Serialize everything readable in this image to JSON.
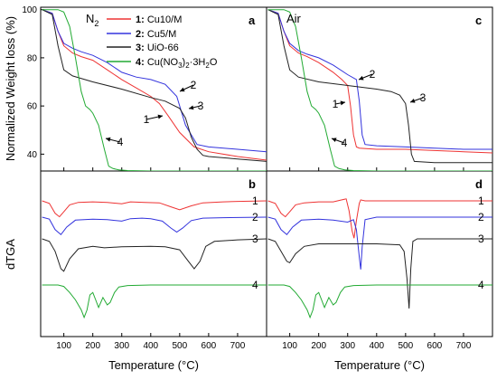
{
  "figure": {
    "ylabel_top": "Normalized Weight loss (%)",
    "ylabel_bottom": "dTGA",
    "xlabel": "Temperature (°C)"
  },
  "colors": {
    "s1": "#ee3333",
    "s2": "#3333dd",
    "s3": "#222222",
    "s4": "#22aa33"
  },
  "legend": {
    "environment_left": "N",
    "environment_left_sub": "2",
    "entries": [
      {
        "num": "1:",
        "label": "Cu10/M"
      },
      {
        "num": "2:",
        "label": "Cu5/M"
      },
      {
        "num": "3:",
        "label": "UiO-66"
      },
      {
        "num": "4:",
        "label": "Cu(NO",
        "sub1": "3",
        "mid": ")",
        "sub2": "2",
        "tail": "·3H",
        "sub3": "2",
        "end": "O"
      }
    ]
  },
  "chart_data": [
    {
      "type": "line",
      "panel": "a",
      "environment": "N2",
      "xlim": [
        20,
        800
      ],
      "ylim": [
        33,
        101
      ],
      "xticks": [
        100,
        200,
        300,
        400,
        500,
        600,
        700
      ],
      "yticks": [
        40,
        60,
        80,
        100
      ],
      "annotations": [
        "1",
        "2",
        "3",
        "4"
      ],
      "series": [
        {
          "name": "Cu10/M",
          "x": [
            25,
            60,
            80,
            100,
            130,
            160,
            200,
            250,
            300,
            350,
            400,
            430,
            460,
            500,
            550,
            600,
            700,
            800
          ],
          "y": [
            100,
            98.5,
            91,
            85,
            82,
            80.5,
            79,
            75,
            71,
            67.5,
            64,
            61,
            56,
            49,
            43,
            41,
            39,
            37.5
          ]
        },
        {
          "name": "Cu5/M",
          "x": [
            25,
            60,
            80,
            100,
            130,
            160,
            200,
            250,
            300,
            350,
            400,
            450,
            490,
            520,
            560,
            600,
            700,
            800
          ],
          "y": [
            100,
            98.5,
            91,
            86,
            84,
            82.5,
            81,
            78,
            74,
            72,
            71,
            69,
            64,
            52,
            44,
            43,
            42,
            41
          ]
        },
        {
          "name": "UiO-66",
          "x": [
            25,
            60,
            80,
            100,
            130,
            200,
            300,
            400,
            450,
            500,
            520,
            540,
            560,
            580,
            600,
            700,
            800
          ],
          "y": [
            100,
            98,
            85,
            75,
            72.5,
            70,
            67,
            63.5,
            62,
            59,
            55,
            47,
            42,
            39.5,
            39,
            38,
            37
          ]
        },
        {
          "name": "Cu(NO3)2·3H2O",
          "x": [
            25,
            80,
            100,
            120,
            140,
            160,
            175,
            190,
            200,
            220,
            240,
            255,
            270,
            290,
            320,
            400,
            500,
            600,
            700,
            800
          ],
          "y": [
            100,
            100,
            99,
            93,
            80,
            66,
            60,
            58.5,
            57,
            52,
            42,
            35,
            34,
            33.5,
            33.2,
            33,
            33,
            33,
            33,
            33
          ]
        }
      ]
    },
    {
      "type": "line",
      "panel": "c",
      "environment": "Air",
      "xlim": [
        20,
        800
      ],
      "ylim": [
        33,
        101
      ],
      "xticks": [
        100,
        200,
        300,
        400,
        500,
        600,
        700
      ],
      "annotations": [
        "1",
        "2",
        "3",
        "4"
      ],
      "series": [
        {
          "name": "Cu10/M",
          "x": [
            25,
            60,
            80,
            100,
            130,
            160,
            200,
            250,
            280,
            300,
            310,
            320,
            330,
            340,
            400,
            500,
            600,
            700,
            800
          ],
          "y": [
            100,
            98.5,
            91,
            85,
            82,
            80.5,
            78,
            74,
            71,
            68.5,
            60,
            48,
            43,
            42.5,
            42,
            42,
            41.5,
            41,
            40.5
          ]
        },
        {
          "name": "Cu5/M",
          "x": [
            25,
            60,
            80,
            100,
            130,
            160,
            200,
            250,
            300,
            330,
            340,
            350,
            360,
            400,
            500,
            600,
            700,
            800
          ],
          "y": [
            100,
            98.5,
            91,
            86,
            83,
            81.5,
            80,
            77,
            73,
            71,
            62,
            48,
            44,
            43.5,
            43,
            42.5,
            42,
            42
          ]
        },
        {
          "name": "UiO-66",
          "x": [
            25,
            60,
            80,
            100,
            130,
            200,
            300,
            400,
            450,
            480,
            500,
            510,
            520,
            530,
            600,
            700,
            800
          ],
          "y": [
            100,
            98,
            85,
            75,
            72,
            70,
            68.5,
            67,
            66,
            64.5,
            61,
            52,
            40,
            37,
            36.5,
            36.5,
            36.5
          ]
        },
        {
          "name": "Cu(NO3)2·3H2O",
          "x": [
            25,
            80,
            100,
            120,
            140,
            160,
            175,
            190,
            200,
            220,
            240,
            255,
            270,
            290,
            320,
            400,
            500,
            600,
            700,
            800
          ],
          "y": [
            100,
            100,
            99,
            93,
            80,
            66,
            60,
            58.5,
            57,
            52,
            42,
            35,
            34,
            33.5,
            33.2,
            33,
            33,
            33,
            33,
            33
          ]
        }
      ]
    },
    {
      "type": "line",
      "panel": "b",
      "environment": "N2",
      "xlim": [
        20,
        800
      ],
      "xticks": [
        100,
        200,
        300,
        400,
        500,
        600,
        700
      ],
      "curve_labels": [
        "1",
        "2",
        "3",
        "4"
      ],
      "series": [
        {
          "name": "1",
          "x": [
            25,
            50,
            70,
            85,
            100,
            120,
            150,
            200,
            250,
            300,
            330,
            380,
            430,
            470,
            500,
            540,
            580,
            650,
            700,
            800
          ],
          "y": [
            0,
            -0.5,
            -2.5,
            -3.2,
            -2.2,
            -0.8,
            -0.3,
            -0.2,
            -0.3,
            -0.6,
            -0.2,
            -0.3,
            -0.4,
            -1.2,
            -1.8,
            -1.0,
            -0.4,
            -0.2,
            -0.1,
            0
          ]
        },
        {
          "name": "2",
          "x": [
            25,
            50,
            70,
            90,
            110,
            140,
            200,
            250,
            300,
            330,
            370,
            400,
            440,
            470,
            490,
            510,
            540,
            580,
            650,
            800
          ],
          "y": [
            0,
            -0.4,
            -2.5,
            -3.5,
            -2.0,
            -0.6,
            -0.4,
            -0.5,
            -0.8,
            -0.3,
            -0.2,
            -0.3,
            -0.8,
            -2.2,
            -3.0,
            -2.2,
            -0.7,
            -0.2,
            -0.1,
            0
          ]
        },
        {
          "name": "3",
          "x": [
            25,
            50,
            70,
            90,
            100,
            120,
            150,
            200,
            240,
            300,
            400,
            450,
            500,
            530,
            550,
            570,
            590,
            620,
            700,
            800
          ],
          "y": [
            0,
            -0.5,
            -2.5,
            -6.0,
            -6.5,
            -4.0,
            -2.0,
            -1.5,
            -1.8,
            -1.6,
            -1.5,
            -1.6,
            -2.2,
            -4.5,
            -6.0,
            -4.5,
            -1.5,
            -0.5,
            -0.2,
            0
          ]
        },
        {
          "name": "4",
          "x": [
            25,
            80,
            100,
            120,
            140,
            160,
            170,
            180,
            190,
            200,
            210,
            220,
            235,
            250,
            260,
            275,
            290,
            320,
            400,
            800
          ],
          "y": [
            0,
            0,
            -0.3,
            -1.5,
            -3.0,
            -5.0,
            -6.5,
            -5.0,
            -2.0,
            -1.5,
            -3.0,
            -4.5,
            -2.5,
            -4.0,
            -3.5,
            -1.5,
            -0.4,
            -0.1,
            0,
            0
          ]
        }
      ]
    },
    {
      "type": "line",
      "panel": "d",
      "environment": "Air",
      "xlim": [
        20,
        800
      ],
      "xticks": [
        100,
        200,
        300,
        400,
        500,
        600,
        700
      ],
      "curve_labels": [
        "1",
        "2",
        "3",
        "4"
      ],
      "series": [
        {
          "name": "1",
          "x": [
            25,
            50,
            70,
            85,
            100,
            120,
            150,
            200,
            250,
            280,
            295,
            305,
            315,
            322,
            330,
            340,
            345,
            360,
            400,
            800
          ],
          "y": [
            0,
            -0.5,
            -2.5,
            -3.2,
            -2.2,
            -0.8,
            -0.4,
            -0.2,
            -0.2,
            0.2,
            0.4,
            -2.0,
            -6.0,
            -7.5,
            -4.0,
            -0.5,
            0.2,
            0,
            0,
            0
          ]
        },
        {
          "name": "2",
          "x": [
            25,
            50,
            70,
            90,
            110,
            140,
            200,
            250,
            300,
            320,
            330,
            340,
            345,
            350,
            360,
            400,
            800
          ],
          "y": [
            0,
            -0.4,
            -2.5,
            -3.5,
            -2.0,
            -0.6,
            -0.4,
            -0.6,
            -1.0,
            -0.5,
            -2.5,
            -8.0,
            -10.5,
            -6.0,
            -0.5,
            0,
            0
          ]
        },
        {
          "name": "3",
          "x": [
            25,
            50,
            70,
            90,
            100,
            120,
            150,
            200,
            300,
            400,
            480,
            495,
            505,
            512,
            518,
            525,
            540,
            800
          ],
          "y": [
            0,
            -0.5,
            -2.5,
            -4.5,
            -4.8,
            -3.0,
            -1.5,
            -1.0,
            -1.0,
            -1.0,
            -1.2,
            -2.5,
            -8.0,
            -14.0,
            -6.0,
            -0.5,
            0,
            0
          ]
        },
        {
          "name": "4",
          "x": [
            25,
            80,
            100,
            120,
            140,
            160,
            170,
            180,
            190,
            200,
            210,
            220,
            235,
            250,
            260,
            275,
            290,
            320,
            400,
            800
          ],
          "y": [
            0,
            0,
            -0.3,
            -1.5,
            -3.0,
            -5.0,
            -6.5,
            -5.0,
            -2.0,
            -1.5,
            -3.0,
            -4.5,
            -2.5,
            -4.0,
            -3.5,
            -1.5,
            -0.4,
            -0.1,
            0,
            0
          ]
        }
      ]
    }
  ]
}
